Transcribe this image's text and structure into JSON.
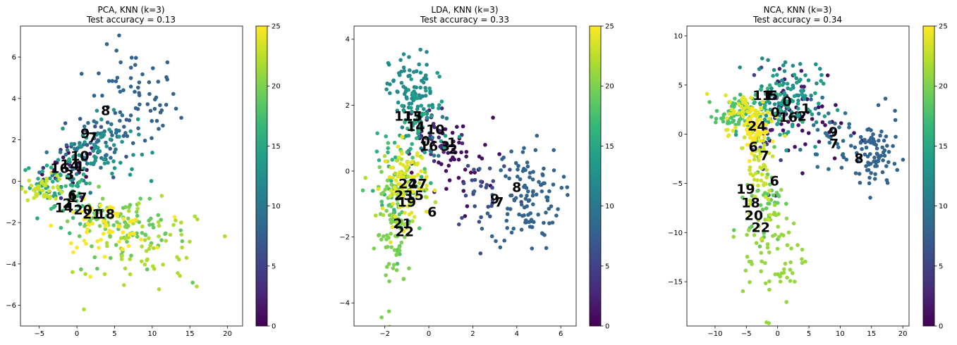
{
  "colormap": {
    "name": "viridis",
    "stops": [
      "#440154",
      "#482878",
      "#3e4989",
      "#31688e",
      "#26828e",
      "#1f9e89",
      "#35b779",
      "#6ece58",
      "#b5de2b",
      "#fde725"
    ],
    "range": [
      0,
      25
    ],
    "ticks": [
      0,
      5,
      10,
      15,
      20,
      25
    ]
  },
  "chart_data": [
    {
      "type": "scatter",
      "title_lines": [
        "PCA, KNN (k=3)",
        "Test accuracy = 0.13"
      ],
      "xlim": [
        -7.5,
        22
      ],
      "ylim": [
        -7,
        7.5
      ],
      "xticks": [
        -5,
        0,
        5,
        10,
        15,
        20
      ],
      "yticks": [
        -6,
        -4,
        -2,
        0,
        2,
        4,
        6
      ],
      "clusters": [
        {
          "c": 1,
          "cx": -0.5,
          "cy": 0.7,
          "sx": 2.0,
          "sy": 0.7,
          "n": 20
        },
        {
          "c": 4,
          "cx": -1.5,
          "cy": 0.3,
          "sx": 1.8,
          "sy": 0.6,
          "n": 12
        },
        {
          "c": 7,
          "cx": 3.2,
          "cy": 1.8,
          "sx": 2.3,
          "sy": 0.8,
          "n": 22
        },
        {
          "c": 8,
          "cx": 7.5,
          "cy": 3.8,
          "sx": 3.0,
          "sy": 1.3,
          "n": 70
        },
        {
          "c": 9,
          "cx": 3.0,
          "cy": 2.0,
          "sx": 2.0,
          "sy": 0.8,
          "n": 30
        },
        {
          "c": 10,
          "cx": -0.2,
          "cy": 1.1,
          "sx": 2.2,
          "sy": 0.8,
          "n": 30
        },
        {
          "c": 13,
          "cx": 2.8,
          "cy": 1.6,
          "sx": 2.6,
          "sy": 0.8,
          "n": 60
        },
        {
          "c": 15,
          "cx": -3.0,
          "cy": -0.1,
          "sx": 2.2,
          "sy": 0.5,
          "n": 40
        },
        {
          "c": 17,
          "cx": -0.2,
          "cy": -1.2,
          "sx": 2.0,
          "sy": 0.5,
          "n": 25
        },
        {
          "c": 19,
          "cx": 7.5,
          "cy": -2.6,
          "sx": 3.5,
          "sy": 0.9,
          "n": 50
        },
        {
          "c": 20,
          "cx": 4.0,
          "cy": -1.9,
          "sx": 2.5,
          "sy": 0.5,
          "n": 40
        },
        {
          "c": 22,
          "cx": 10.0,
          "cy": -3.4,
          "sx": 4.0,
          "sy": 1.1,
          "n": 60
        },
        {
          "c": 23,
          "cx": -4.2,
          "cy": -0.3,
          "sx": 1.4,
          "sy": 0.3,
          "n": 40
        },
        {
          "c": 25,
          "cx": 3.5,
          "cy": -2.2,
          "sx": 3.0,
          "sy": 0.6,
          "n": 60
        }
      ],
      "labels": [
        {
          "t": "8",
          "x": 3.8,
          "y": 3.4
        },
        {
          "t": "9",
          "x": 1.1,
          "y": 2.3
        },
        {
          "t": "7",
          "x": 2.1,
          "y": 2.1
        },
        {
          "t": "10",
          "x": 0.4,
          "y": 1.2
        },
        {
          "t": "1",
          "x": -1.6,
          "y": 0.8
        },
        {
          "t": "4",
          "x": -0.3,
          "y": 0.75
        },
        {
          "t": "1",
          "x": 0.4,
          "y": 0.7
        },
        {
          "t": "16",
          "x": -2.3,
          "y": 0.6
        },
        {
          "t": "3",
          "x": -1.0,
          "y": 0.3
        },
        {
          "t": "6",
          "x": -0.6,
          "y": -0.7
        },
        {
          "t": "17",
          "x": 0.1,
          "y": -0.8
        },
        {
          "t": "2",
          "x": -1.3,
          "y": -1.1
        },
        {
          "t": "14",
          "x": -1.7,
          "y": -1.3
        },
        {
          "t": "20",
          "x": 0.8,
          "y": -1.4
        },
        {
          "t": "21",
          "x": 2.0,
          "y": -1.6
        },
        {
          "t": "18",
          "x": 3.8,
          "y": -1.6
        }
      ]
    },
    {
      "type": "scatter",
      "title_lines": [
        "LDA, KNN (k=3)",
        "Test accuracy = 0.33"
      ],
      "xlim": [
        -3.4,
        6.7
      ],
      "ylim": [
        -4.7,
        4.4
      ],
      "xticks": [
        -2,
        0,
        2,
        4,
        6
      ],
      "yticks": [
        -4,
        -2,
        0,
        2,
        4
      ],
      "clusters": [
        {
          "c": 1,
          "cx": 1.1,
          "cy": 0.2,
          "sx": 0.9,
          "sy": 0.7,
          "n": 50
        },
        {
          "c": 3,
          "cx": 0.3,
          "cy": 1.1,
          "sx": 0.7,
          "sy": 0.6,
          "n": 30
        },
        {
          "c": 6,
          "cx": 2.5,
          "cy": -0.5,
          "sx": 0.8,
          "sy": 0.7,
          "n": 30
        },
        {
          "c": 8,
          "cx": 4.4,
          "cy": -0.8,
          "sx": 0.8,
          "sy": 0.8,
          "n": 110
        },
        {
          "c": 10,
          "cx": -0.3,
          "cy": 1.2,
          "sx": 0.5,
          "sy": 0.4,
          "n": 20
        },
        {
          "c": 12,
          "cx": -0.8,
          "cy": 2.4,
          "sx": 0.5,
          "sy": 0.6,
          "n": 80
        },
        {
          "c": 14,
          "cx": -0.2,
          "cy": 1.7,
          "sx": 0.7,
          "sy": 0.7,
          "n": 40
        },
        {
          "c": 16,
          "cx": -1.2,
          "cy": 0.3,
          "sx": 0.6,
          "sy": 0.7,
          "n": 40
        },
        {
          "c": 18,
          "cx": -1.5,
          "cy": -0.9,
          "sx": 0.5,
          "sy": 0.8,
          "n": 40
        },
        {
          "c": 20,
          "cx": -1.6,
          "cy": -1.9,
          "sx": 0.4,
          "sy": 0.9,
          "n": 70
        },
        {
          "c": 22,
          "cx": -1.0,
          "cy": -0.3,
          "sx": 0.5,
          "sy": 0.6,
          "n": 40
        },
        {
          "c": 24,
          "cx": -1.1,
          "cy": -0.4,
          "sx": 0.5,
          "sy": 0.6,
          "n": 80
        }
      ],
      "labels": [
        {
          "t": "11",
          "x": -1.15,
          "y": 1.65
        },
        {
          "t": "13",
          "x": -0.75,
          "y": 1.65
        },
        {
          "t": "5",
          "x": -0.5,
          "y": 1.65
        },
        {
          "t": "14",
          "x": -0.6,
          "y": 1.35
        },
        {
          "t": "10",
          "x": 0.3,
          "y": 1.25
        },
        {
          "t": "0",
          "x": -0.15,
          "y": 0.9
        },
        {
          "t": "16",
          "x": 0.0,
          "y": 0.75
        },
        {
          "t": "3",
          "x": 0.75,
          "y": 0.75
        },
        {
          "t": "1",
          "x": 1.05,
          "y": 0.85
        },
        {
          "t": "2",
          "x": 1.1,
          "y": 0.65
        },
        {
          "t": "24",
          "x": -0.95,
          "y": -0.4
        },
        {
          "t": "27",
          "x": -0.5,
          "y": -0.4
        },
        {
          "t": "23",
          "x": -1.15,
          "y": -0.75
        },
        {
          "t": "15",
          "x": -0.65,
          "y": -0.75
        },
        {
          "t": "19",
          "x": -1.0,
          "y": -0.95
        },
        {
          "t": "9",
          "x": 3.0,
          "y": -0.85
        },
        {
          "t": "7",
          "x": 3.2,
          "y": -0.95
        },
        {
          "t": "8",
          "x": 4.0,
          "y": -0.5
        },
        {
          "t": "6",
          "x": 0.15,
          "y": -1.25
        },
        {
          "t": "21",
          "x": -1.2,
          "y": -1.6
        },
        {
          "t": "22",
          "x": -1.1,
          "y": -1.85
        }
      ]
    },
    {
      "type": "scatter",
      "title_lines": [
        "NCA, KNN (k=3)",
        "Test accuracy = 0.34"
      ],
      "xlim": [
        -14.5,
        21
      ],
      "ylim": [
        -19.5,
        11
      ],
      "xticks": [
        -10,
        -5,
        0,
        5,
        10,
        15,
        20
      ],
      "yticks": [
        -15,
        -10,
        -5,
        0,
        5,
        10
      ],
      "clusters": [
        {
          "c": 1,
          "cx": 4.0,
          "cy": 0.8,
          "sx": 3.5,
          "sy": 2.0,
          "n": 40
        },
        {
          "c": 2,
          "cx": 1.5,
          "cy": 4.0,
          "sx": 2.0,
          "sy": 2.5,
          "n": 20
        },
        {
          "c": 5,
          "cx": -2.0,
          "cy": 0.0,
          "sx": 1.5,
          "sy": 2.5,
          "n": 20
        },
        {
          "c": 8,
          "cx": 15.5,
          "cy": -2.2,
          "sx": 2.0,
          "sy": 2.0,
          "n": 90
        },
        {
          "c": 9,
          "cx": 8.0,
          "cy": -0.2,
          "sx": 1.8,
          "sy": 1.5,
          "n": 30
        },
        {
          "c": 12,
          "cx": 1.5,
          "cy": 4.5,
          "sx": 2.5,
          "sy": 1.8,
          "n": 60
        },
        {
          "c": 14,
          "cx": 1.0,
          "cy": 3.0,
          "sx": 3.0,
          "sy": 2.0,
          "n": 60
        },
        {
          "c": 16,
          "cx": -3.0,
          "cy": 2.5,
          "sx": 2.5,
          "sy": 1.2,
          "n": 30
        },
        {
          "c": 18,
          "cx": -7.0,
          "cy": 2.0,
          "sx": 1.5,
          "sy": 0.8,
          "n": 60
        },
        {
          "c": 19,
          "cx": -2.0,
          "cy": -6.0,
          "sx": 1.5,
          "sy": 2.5,
          "n": 40
        },
        {
          "c": 21,
          "cx": -0.5,
          "cy": -12.0,
          "sx": 2.5,
          "sy": 3.0,
          "n": 70
        },
        {
          "c": 23,
          "cx": -3.0,
          "cy": -3.0,
          "sx": 1.3,
          "sy": 3.0,
          "n": 50
        },
        {
          "c": 24,
          "cx": -4.5,
          "cy": 2.0,
          "sx": 2.0,
          "sy": 1.0,
          "n": 70
        },
        {
          "c": 25,
          "cx": -3.5,
          "cy": 0.5,
          "sx": 1.0,
          "sy": 1.5,
          "n": 40
        }
      ],
      "labels": [
        {
          "t": "11",
          "x": -2.5,
          "y": 3.9
        },
        {
          "t": "5",
          "x": -0.7,
          "y": 3.9
        },
        {
          "t": "1",
          "x": -1.4,
          "y": 3.9
        },
        {
          "t": "0",
          "x": 1.5,
          "y": 3.3
        },
        {
          "t": "1",
          "x": 4.5,
          "y": 2.6
        },
        {
          "t": "0",
          "x": -0.4,
          "y": 2.2
        },
        {
          "t": "16",
          "x": 1.7,
          "y": 1.7
        },
        {
          "t": "2",
          "x": 3.9,
          "y": 1.8
        },
        {
          "t": "24",
          "x": -3.3,
          "y": 0.8
        },
        {
          "t": "9",
          "x": 8.9,
          "y": 0.2
        },
        {
          "t": "6",
          "x": -3.9,
          "y": -1.3
        },
        {
          "t": "7",
          "x": 9.0,
          "y": -1.0
        },
        {
          "t": "7",
          "x": -2.1,
          "y": -2.2
        },
        {
          "t": "8",
          "x": 13.0,
          "y": -2.5
        },
        {
          "t": "6",
          "x": -0.5,
          "y": -4.8
        },
        {
          "t": "19",
          "x": -5.1,
          "y": -5.6
        },
        {
          "t": "18",
          "x": -4.3,
          "y": -7.0
        },
        {
          "t": "20",
          "x": -3.8,
          "y": -8.3
        },
        {
          "t": "22",
          "x": -2.7,
          "y": -9.5
        }
      ]
    }
  ]
}
